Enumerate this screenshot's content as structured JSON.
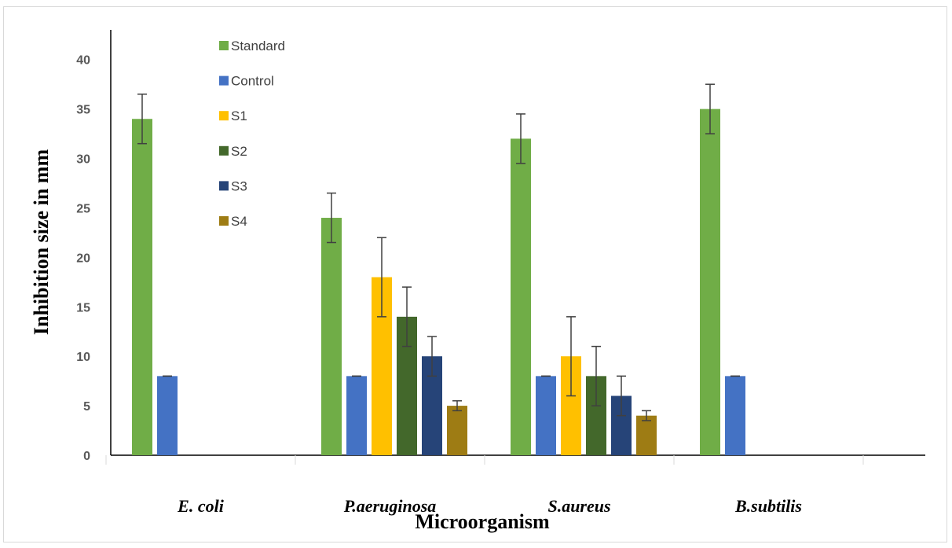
{
  "chart_data": {
    "type": "bar",
    "xlabel": "Microorganism",
    "ylabel": "Inhibition size in mm",
    "ylim": [
      0,
      43
    ],
    "yticks": [
      0,
      5,
      10,
      15,
      20,
      25,
      30,
      35,
      40
    ],
    "grid": false,
    "legend_position": "top-left (inside plot)",
    "categories": [
      "E. coli",
      "P.aeruginosa",
      "S.aureus",
      "B.subtilis"
    ],
    "series": [
      {
        "name": "Standard",
        "color": "#70ad47",
        "values": [
          34,
          24,
          32,
          35
        ],
        "errors": [
          2.5,
          2.5,
          2.5,
          2.5
        ]
      },
      {
        "name": "Control",
        "color": "#4472c4",
        "values": [
          8,
          8,
          8,
          8
        ],
        "errors": [
          0,
          0,
          0,
          0
        ]
      },
      {
        "name": "S1",
        "color": "#ffc000",
        "values": [
          null,
          18,
          10,
          null
        ],
        "errors": [
          null,
          4,
          4,
          null
        ]
      },
      {
        "name": "S2",
        "color": "#43682b",
        "values": [
          null,
          14,
          8,
          null
        ],
        "errors": [
          null,
          3,
          3,
          null
        ]
      },
      {
        "name": "S3",
        "color": "#264478",
        "values": [
          null,
          10,
          6,
          null
        ],
        "errors": [
          null,
          2,
          2,
          null
        ]
      },
      {
        "name": "S4",
        "color": "#9e7c14",
        "values": [
          null,
          5,
          4,
          null
        ],
        "errors": [
          null,
          0.5,
          0.5,
          null
        ]
      }
    ]
  }
}
